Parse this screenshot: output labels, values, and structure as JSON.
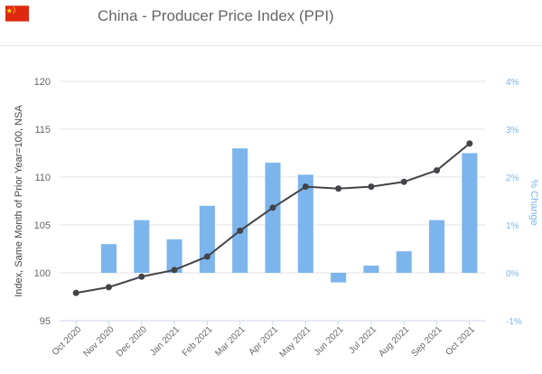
{
  "title": "China - Producer Price Index (PPI)",
  "flag_icon": "china-flag-icon",
  "colors": {
    "bar": "#7cb5ec",
    "line": "#434348",
    "right_axis_text": "#7cb5ec",
    "left_axis_text": "#666666",
    "grid": "#e6e6e6",
    "flag_red": "#de2910",
    "flag_star": "#ffde00"
  },
  "chart_data": {
    "type": "bar+line",
    "categories": [
      "Oct 2020",
      "Nov 2020",
      "Dec 2020",
      "Jan 2021",
      "Feb 2021",
      "Mar 2021",
      "Apr 2021",
      "May 2021",
      "Jun 2021",
      "Jul 2021",
      "Aug 2021",
      "Sep 2021",
      "Oct 2021"
    ],
    "series": [
      {
        "type": "line",
        "axis": "left",
        "values": [
          97.9,
          98.5,
          99.6,
          100.3,
          101.7,
          104.4,
          106.8,
          109.0,
          108.8,
          109.0,
          109.5,
          110.7,
          113.5
        ]
      },
      {
        "type": "bar",
        "axis": "right",
        "values": [
          null,
          0.6,
          1.1,
          0.7,
          1.4,
          2.6,
          2.3,
          2.05,
          -0.2,
          0.15,
          0.45,
          1.1,
          2.5
        ]
      }
    ],
    "ylabel": "Index, Same Month of Prior Year=100, NSA",
    "y2label": "% Change",
    "ylim": [
      95,
      120
    ],
    "y2lim": [
      -1,
      4
    ],
    "yticks": [
      "95",
      "100",
      "105",
      "110",
      "115",
      "120"
    ],
    "y2ticks": [
      "-1%",
      "0%",
      "1%",
      "2%",
      "3%",
      "4%"
    ],
    "grid": true
  }
}
